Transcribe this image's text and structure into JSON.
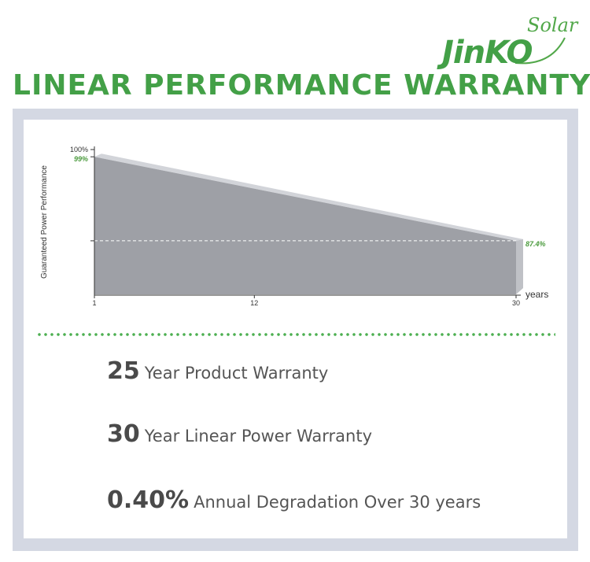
{
  "logo": {
    "brand": "JinKO",
    "sub": "Solar"
  },
  "heading": "LINEAR PERFORMANCE WARRANTY",
  "chart_data": {
    "type": "area",
    "ylabel": "Guaranteed Power Performance",
    "xlabel": "years",
    "x_ticks": [
      "1",
      "12",
      "30"
    ],
    "y_ticks": [
      "100%"
    ],
    "x": [
      1,
      30
    ],
    "values": [
      99,
      87.4
    ],
    "value_labels": [
      "99%",
      "87.4%"
    ],
    "xlim": [
      1,
      30
    ],
    "ylim": [
      80,
      100
    ],
    "colors": {
      "area": "#9ea0a6",
      "top": "#d2d4d9",
      "side": "#bfc1c6",
      "highlight": "#4a9a3c"
    }
  },
  "stats": [
    {
      "value": "25",
      "text": "Year Product Warranty"
    },
    {
      "value": "30",
      "text": "Year Linear Power Warranty"
    },
    {
      "value": "0.40%",
      "text": "Annual Degradation Over 30 years"
    }
  ]
}
